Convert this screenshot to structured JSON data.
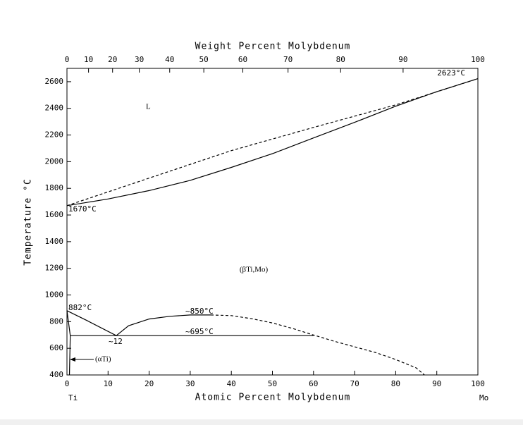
{
  "chart_data": {
    "type": "line",
    "x_label": "Atomic Percent Molybdenum",
    "x2_label": "Weight Percent Molybdenum",
    "y_label": "Temperature °C",
    "xlim": [
      0,
      100
    ],
    "xticks": [
      0,
      10,
      20,
      30,
      40,
      50,
      60,
      70,
      80,
      90,
      100
    ],
    "x2ticks": [
      {
        "value": 0,
        "label": "0"
      },
      {
        "value": 5.25,
        "label": "10"
      },
      {
        "value": 11.1,
        "label": "20"
      },
      {
        "value": 17.6,
        "label": "30"
      },
      {
        "value": 25.0,
        "label": "40"
      },
      {
        "value": 33.3,
        "label": "50"
      },
      {
        "value": 42.8,
        "label": "60"
      },
      {
        "value": 53.8,
        "label": "70"
      },
      {
        "value": 66.6,
        "label": "80"
      },
      {
        "value": 81.8,
        "label": "90"
      },
      {
        "value": 100,
        "label": "100"
      }
    ],
    "ylim": [
      400,
      2700
    ],
    "yticks": [
      400,
      600,
      800,
      1000,
      1200,
      1400,
      1600,
      1800,
      2000,
      2200,
      2400,
      2600
    ],
    "series": [
      {
        "color": "#000000",
        "dashed": true,
        "x": [
          0,
          20,
          40,
          60,
          80,
          100
        ],
        "values": [
          1670,
          1877,
          2083,
          2257,
          2426,
          2623
        ]
      },
      {
        "color": "#000000",
        "dashed": false,
        "x": [
          0,
          10,
          20,
          30,
          40,
          50,
          60,
          70,
          80,
          90,
          100
        ],
        "values": [
          1670,
          1720,
          1783,
          1860,
          1957,
          2060,
          2178,
          2295,
          2416,
          2525,
          2623
        ]
      },
      {
        "color": "#000000",
        "dashed": false,
        "x": [
          0,
          5,
          12,
          15,
          20,
          25,
          30,
          35
        ],
        "values": [
          882,
          806,
          695,
          769,
          820,
          840,
          850,
          850
        ]
      },
      {
        "color": "#000000",
        "dashed": true,
        "x": [
          35,
          40,
          45,
          50,
          55,
          60,
          65,
          70,
          75,
          80,
          85,
          87
        ],
        "values": [
          850,
          845,
          822,
          790,
          748,
          700,
          653,
          611,
          569,
          516,
          453,
          400
        ]
      },
      {
        "color": "#000000",
        "dashed": false,
        "x": [
          0.8,
          60
        ],
        "values": [
          695,
          695
        ]
      },
      {
        "color": "#000000",
        "dashed": false,
        "x": [
          0,
          0.8,
          0.6
        ],
        "values": [
          882,
          695,
          400
        ]
      }
    ],
    "annotations": [
      "L",
      "2623°C",
      "1670°C",
      "882°C",
      "~850°C",
      "~695°C",
      "~12",
      "(βTi,Mo)",
      "(αTi)",
      "Ti",
      "Mo"
    ]
  }
}
